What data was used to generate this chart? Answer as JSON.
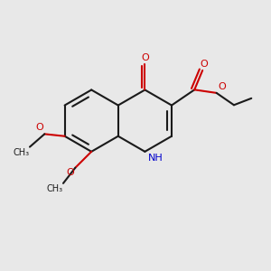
{
  "bg_color": "#e8e8e8",
  "bond_color": "#1a1a1a",
  "oxygen_color": "#cc0000",
  "nitrogen_color": "#0000cc",
  "line_width": 1.5,
  "dbo": 0.018,
  "figsize": [
    3.0,
    3.0
  ],
  "dpi": 100,
  "xlim": [
    0.0,
    1.0
  ],
  "ylim": [
    0.0,
    1.0
  ]
}
